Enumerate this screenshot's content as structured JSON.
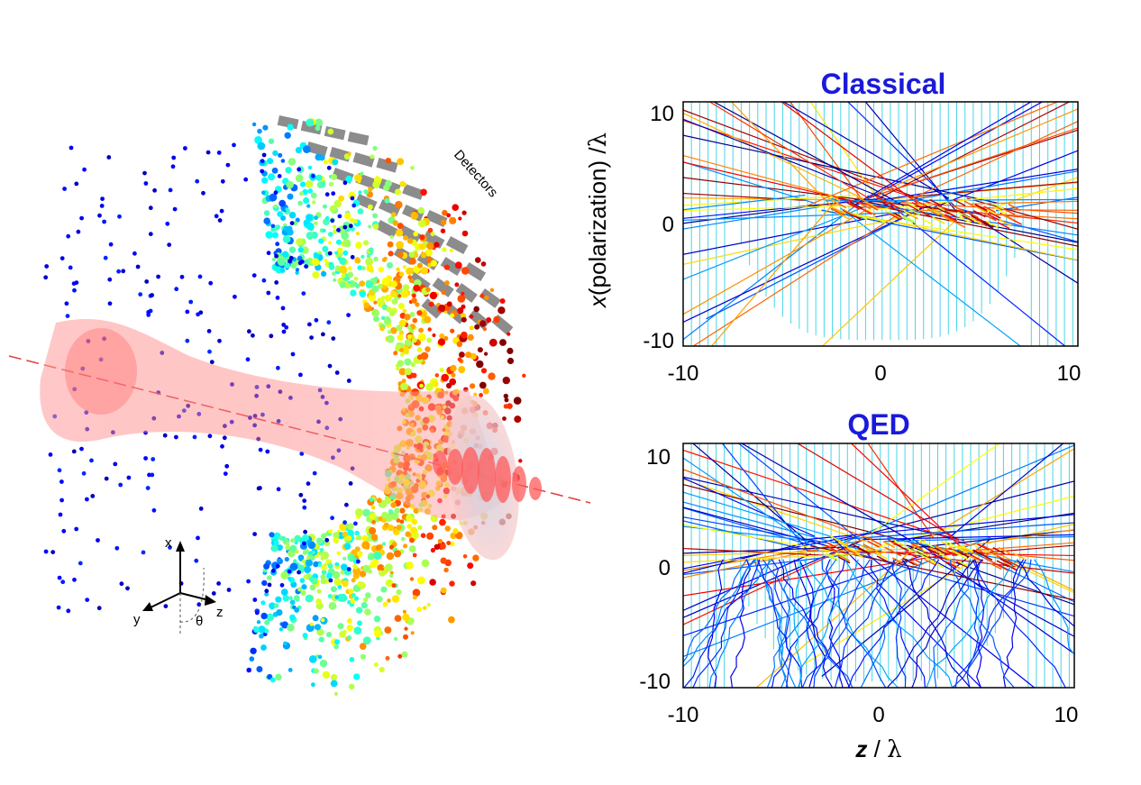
{
  "colors": {
    "title": "#1a1adb",
    "beam": "#ff7f7f",
    "detector": "#8c8c8c",
    "background_lines": "#4ad6e6",
    "plot_frame": "#000000"
  },
  "scene": {
    "detectors_label": "Detectors",
    "axes": {
      "x": "x",
      "y": "y",
      "z": "z",
      "theta": "θ"
    }
  },
  "panels": [
    {
      "id": "classical",
      "title": "Classical",
      "ylabel_prefix": "x",
      "ylabel_suffix": "(polarization) /",
      "ylabel_symbol": "λ",
      "xlim": [
        -10,
        10
      ],
      "ylim": [
        -10,
        10
      ],
      "xticks": [
        "-10",
        "0",
        "10"
      ],
      "yticks": [
        "10",
        "0",
        "-10"
      ]
    },
    {
      "id": "qed",
      "title": "QED",
      "xlabel_prefix": "z",
      "xlabel_suffix": " / ",
      "xlabel_symbol": "λ",
      "xlim": [
        -10,
        10
      ],
      "ylim": [
        -10,
        10
      ],
      "xticks": [
        "-10",
        "0",
        "10"
      ],
      "yticks": [
        "10",
        "0",
        "-10"
      ]
    }
  ]
}
